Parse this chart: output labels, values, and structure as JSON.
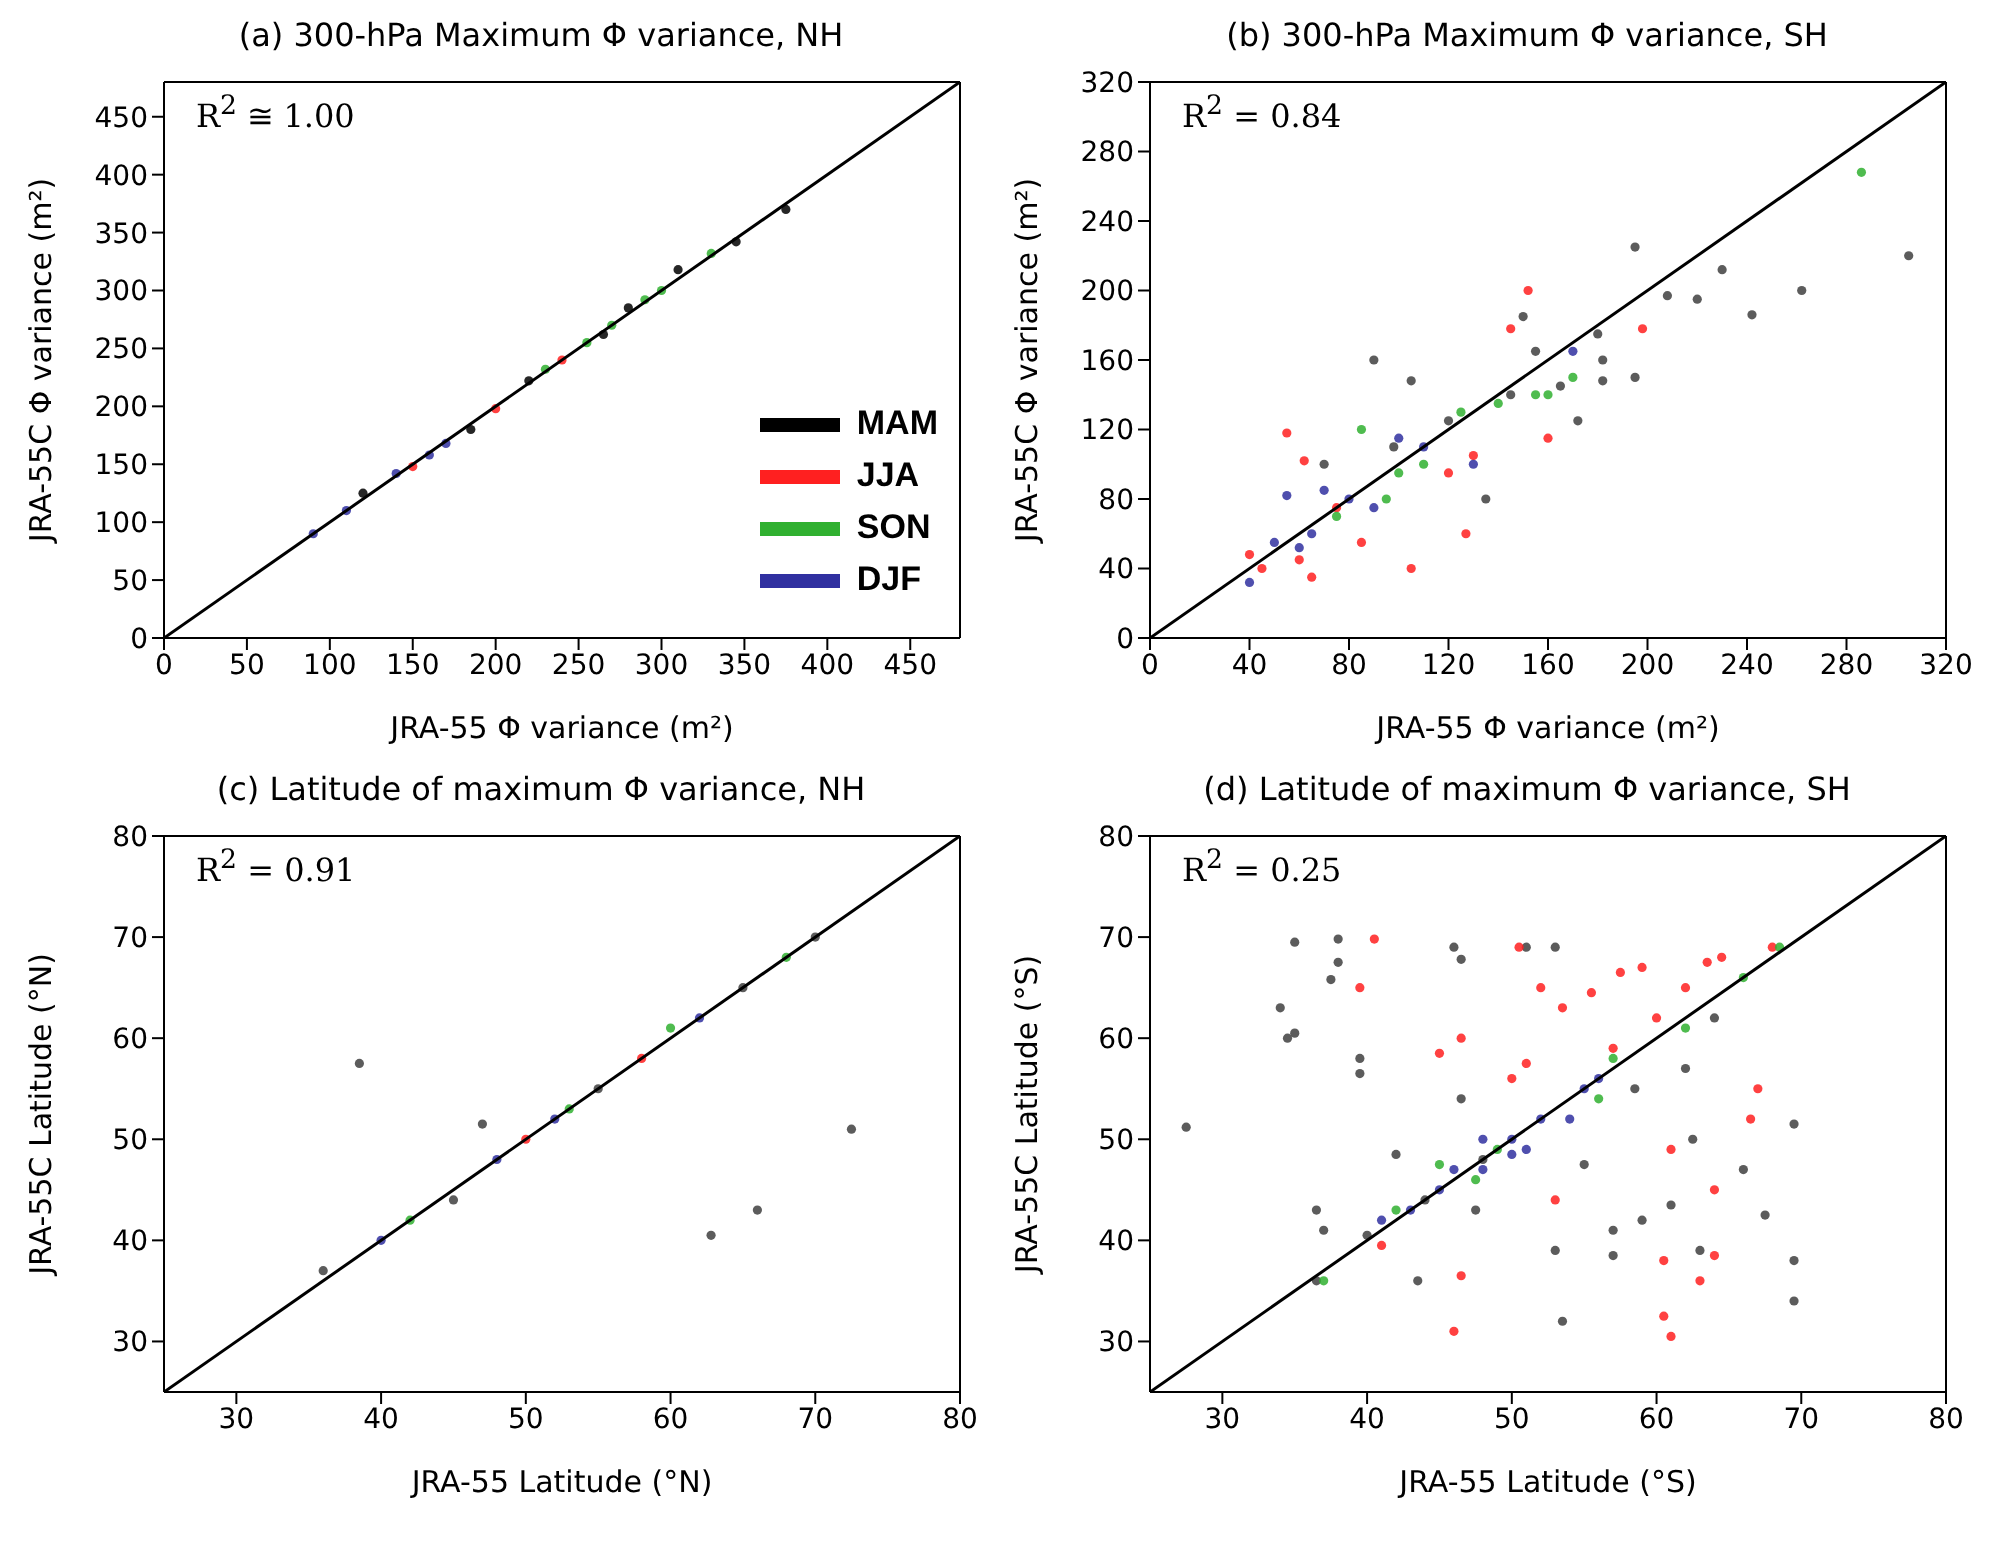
{
  "chart_data": [
    {
      "type": "scatter",
      "title": "(a) 300-hPa Maximum Φ variance, NH",
      "xlabel": "JRA-55 Φ variance (m²)",
      "ylabel": "JRA-55C Φ variance (m²)",
      "annotations": [
        "R$^{2}$ ≅ 1.00"
      ],
      "xlim": [
        0,
        480
      ],
      "ylim": [
        0,
        480
      ],
      "xticks": [
        0,
        50,
        100,
        150,
        200,
        250,
        300,
        350,
        400,
        450
      ],
      "yticks": [
        0,
        50,
        100,
        150,
        200,
        250,
        300,
        350,
        400,
        450
      ],
      "legend": "bottom right",
      "marker": "circle",
      "series": [
        {
          "name": "MAM",
          "color": "#000000",
          "x": [
            120,
            185,
            220,
            265,
            280,
            310,
            345,
            375
          ],
          "values": [
            125,
            180,
            222,
            262,
            285,
            318,
            342,
            370
          ]
        },
        {
          "name": "JJA",
          "color": "#ff2020",
          "x": [
            150,
            200,
            240
          ],
          "values": [
            148,
            198,
            240
          ]
        },
        {
          "name": "SON",
          "color": "#30b030",
          "x": [
            230,
            255,
            270,
            290,
            300,
            330
          ],
          "values": [
            232,
            255,
            270,
            292,
            300,
            332
          ]
        },
        {
          "name": "DJF",
          "color": "#3030a0",
          "x": [
            90,
            110,
            140,
            160,
            170
          ],
          "values": [
            90,
            110,
            142,
            158,
            168
          ]
        },
        {
          "type": "line",
          "marker": "none",
          "color": "#000000",
          "x": [
            0,
            480
          ],
          "values": [
            0,
            480
          ]
        }
      ]
    },
    {
      "type": "scatter",
      "title": "(b) 300-hPa Maximum Φ variance, SH",
      "xlabel": "JRA-55 Φ variance (m²)",
      "ylabel": "JRA-55C Φ variance (m²)",
      "annotations": [
        "R$^{2}$ = 0.84"
      ],
      "xlim": [
        0,
        320
      ],
      "ylim": [
        0,
        320
      ],
      "xticks": [
        0,
        40,
        80,
        120,
        160,
        200,
        240,
        280,
        320
      ],
      "yticks": [
        0,
        40,
        80,
        120,
        160,
        200,
        240,
        280,
        320
      ],
      "marker": "circle",
      "series": [
        {
          "color": "#404040",
          "x": [
            195,
            305,
            262,
            220,
            208,
            242,
            180,
            182,
            182,
            165,
            155,
            150,
            135,
            105,
            90,
            98,
            172,
            70,
            195,
            230,
            145,
            120
          ],
          "values": [
            225,
            220,
            200,
            195,
            197,
            186,
            175,
            160,
            148,
            145,
            165,
            185,
            80,
            148,
            160,
            110,
            125,
            100,
            150,
            212,
            140,
            125
          ]
        },
        {
          "color": "#ff2020",
          "x": [
            55,
            62,
            40,
            60,
            65,
            85,
            105,
            127,
            145,
            198,
            152,
            160,
            120,
            75,
            45,
            130
          ],
          "values": [
            118,
            102,
            48,
            45,
            35,
            55,
            40,
            60,
            178,
            178,
            200,
            115,
            95,
            75,
            40,
            105
          ]
        },
        {
          "color": "#30b030",
          "x": [
            286,
            85,
            100,
            140,
            155,
            160,
            110,
            125,
            95,
            75,
            170
          ],
          "values": [
            268,
            120,
            95,
            135,
            140,
            140,
            100,
            130,
            80,
            70,
            150
          ]
        },
        {
          "color": "#3030a0",
          "x": [
            40,
            50,
            65,
            80,
            90,
            110,
            130,
            170,
            60,
            70,
            100,
            55
          ],
          "values": [
            32,
            55,
            60,
            80,
            75,
            110,
            100,
            165,
            52,
            85,
            115,
            82
          ]
        },
        {
          "type": "line",
          "marker": "none",
          "color": "#000000",
          "x": [
            0,
            320
          ],
          "values": [
            0,
            320
          ]
        }
      ]
    },
    {
      "type": "scatter",
      "title": "(c) Latitude of maximum Φ variance, NH",
      "xlabel": "JRA-55 Latitude (°N)",
      "ylabel": "JRA-55C Latitude (°N)",
      "annotations": [
        "R$^{2}$ = 0.91"
      ],
      "xlim": [
        25,
        80
      ],
      "ylim": [
        25,
        80
      ],
      "xticks": [
        30,
        40,
        50,
        60,
        70,
        80
      ],
      "yticks": [
        30,
        40,
        50,
        60,
        70,
        80
      ],
      "marker": "circle",
      "series": [
        {
          "color": "#404040",
          "x": [
            38.5,
            47,
            62.8,
            66,
            72.5,
            36,
            45,
            55,
            65,
            70
          ],
          "values": [
            57.5,
            51.5,
            40.5,
            43,
            51,
            37,
            44,
            55,
            65,
            70
          ]
        },
        {
          "color": "#ff2020",
          "x": [
            50,
            58
          ],
          "values": [
            50,
            58
          ]
        },
        {
          "color": "#30b030",
          "x": [
            42,
            53,
            60,
            68
          ],
          "values": [
            42,
            53,
            61,
            68
          ]
        },
        {
          "color": "#3030a0",
          "x": [
            40,
            48,
            52,
            62
          ],
          "values": [
            40,
            48,
            52,
            62
          ]
        },
        {
          "type": "line",
          "marker": "none",
          "color": "#000000",
          "x": [
            25,
            80
          ],
          "values": [
            25,
            80
          ]
        }
      ]
    },
    {
      "type": "scatter",
      "title": "(d) Latitude of maximum Φ variance, SH",
      "xlabel": "JRA-55 Latitude (°S)",
      "ylabel": "JRA-55C Latitude (°S)",
      "annotations": [
        "R$^{2}$ = 0.25"
      ],
      "xlim": [
        25,
        80
      ],
      "ylim": [
        25,
        80
      ],
      "xticks": [
        30,
        40,
        50,
        60,
        70,
        80
      ],
      "yticks": [
        30,
        40,
        50,
        60,
        70,
        80
      ],
      "marker": "circle",
      "series": [
        {
          "color": "#404040",
          "x": [
            27.5,
            35,
            38,
            38,
            37.5,
            34,
            34.5,
            35,
            39.5,
            39.5,
            46.5,
            46,
            51,
            53,
            46.5,
            42,
            36.5,
            37,
            36.5,
            43.5,
            47.5,
            53,
            53.5,
            57,
            57,
            61,
            62.5,
            62,
            66,
            67.5,
            69.5,
            69.5,
            69.5,
            63,
            59,
            40,
            44,
            48,
            55,
            58.5,
            64
          ],
          "values": [
            51.2,
            69.5,
            67.5,
            69.8,
            65.8,
            63,
            60,
            60.5,
            58,
            56.5,
            67.8,
            69,
            69,
            69,
            54,
            48.5,
            43,
            41,
            36,
            36,
            43,
            39,
            32,
            38.5,
            41,
            43.5,
            50,
            57,
            47,
            42.5,
            38,
            34,
            51.5,
            39,
            42,
            40.5,
            44,
            48,
            47.5,
            55,
            62
          ]
        },
        {
          "color": "#ff2020",
          "x": [
            40.5,
            39.5,
            50.5,
            52,
            55.5,
            57.5,
            59,
            63.5,
            64.5,
            68,
            62,
            60,
            46.5,
            45,
            50,
            51,
            53.5,
            61,
            66.5,
            67,
            60.5,
            60.5,
            61,
            46,
            46.5,
            63,
            64,
            64,
            41,
            53,
            57
          ],
          "values": [
            69.8,
            65,
            69,
            65,
            64.5,
            66.5,
            67,
            67.5,
            68,
            69,
            65,
            62,
            60,
            58.5,
            56,
            57.5,
            63,
            49,
            52,
            55,
            38,
            32.5,
            30.5,
            31,
            36.5,
            36,
            38.5,
            45,
            39.5,
            44,
            59
          ]
        },
        {
          "color": "#30b030",
          "x": [
            68.5,
            66,
            62,
            57,
            49,
            45,
            47.5,
            42,
            56,
            37
          ],
          "values": [
            69,
            66,
            61,
            58,
            49,
            47.5,
            46,
            43,
            54,
            36
          ]
        },
        {
          "color": "#3030a0",
          "x": [
            45,
            48,
            50,
            51,
            52,
            54,
            55,
            56,
            48,
            50,
            41,
            43,
            46
          ],
          "values": [
            45,
            47,
            50,
            49,
            52,
            52,
            55,
            56,
            50,
            48.5,
            42,
            43,
            47
          ]
        },
        {
          "type": "line",
          "marker": "none",
          "color": "#000000",
          "x": [
            25,
            80
          ],
          "values": [
            25,
            80
          ]
        }
      ]
    }
  ]
}
